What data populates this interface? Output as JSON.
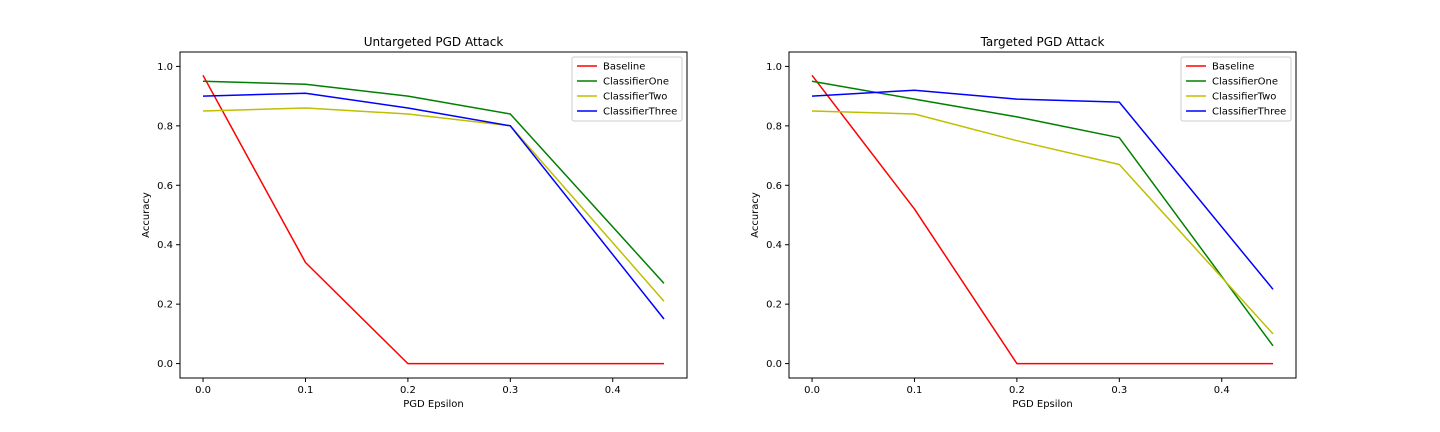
{
  "chart_data": [
    {
      "type": "line",
      "title": "Untargeted PGD Attack",
      "xlabel": "PGD Epsilon",
      "ylabel": "Accuracy",
      "x": [
        0.0,
        0.1,
        0.2,
        0.3,
        0.45
      ],
      "xticks": [
        "0.0",
        "0.1",
        "0.2",
        "0.3",
        "0.4"
      ],
      "xtick_values": [
        0.0,
        0.1,
        0.2,
        0.3,
        0.4
      ],
      "yticks": [
        "0.0",
        "0.2",
        "0.4",
        "0.6",
        "0.8",
        "1.0"
      ],
      "ytick_values": [
        0.0,
        0.2,
        0.4,
        0.6,
        0.8,
        1.0
      ],
      "xlim": [
        -0.0225,
        0.4725
      ],
      "ylim": [
        -0.0485,
        1.0485
      ],
      "legend": "top-right",
      "series": [
        {
          "name": "Baseline",
          "color": "#ff0000",
          "values": [
            0.97,
            0.34,
            0.0,
            0.0,
            0.0
          ]
        },
        {
          "name": "ClassifierOne",
          "color": "#008000",
          "values": [
            0.95,
            0.94,
            0.9,
            0.84,
            0.27
          ]
        },
        {
          "name": "ClassifierTwo",
          "color": "#bfbf00",
          "values": [
            0.85,
            0.86,
            0.84,
            0.8,
            0.21
          ]
        },
        {
          "name": "ClassifierThree",
          "color": "#0000ff",
          "values": [
            0.9,
            0.91,
            0.86,
            0.8,
            0.15
          ]
        }
      ]
    },
    {
      "type": "line",
      "title": "Targeted PGD Attack",
      "xlabel": "PGD Epsilon",
      "ylabel": "Accuracy",
      "x": [
        0.0,
        0.1,
        0.2,
        0.3,
        0.45
      ],
      "xticks": [
        "0.0",
        "0.1",
        "0.2",
        "0.3",
        "0.4"
      ],
      "xtick_values": [
        0.0,
        0.1,
        0.2,
        0.3,
        0.4
      ],
      "yticks": [
        "0.0",
        "0.2",
        "0.4",
        "0.6",
        "0.8",
        "1.0"
      ],
      "ytick_values": [
        0.0,
        0.2,
        0.4,
        0.6,
        0.8,
        1.0
      ],
      "xlim": [
        -0.0225,
        0.4725
      ],
      "ylim": [
        -0.0485,
        1.0485
      ],
      "legend": "top-right",
      "series": [
        {
          "name": "Baseline",
          "color": "#ff0000",
          "values": [
            0.97,
            0.52,
            0.0,
            0.0,
            0.0
          ]
        },
        {
          "name": "ClassifierOne",
          "color": "#008000",
          "values": [
            0.95,
            0.89,
            0.83,
            0.76,
            0.06
          ]
        },
        {
          "name": "ClassifierTwo",
          "color": "#bfbf00",
          "values": [
            0.85,
            0.84,
            0.75,
            0.67,
            0.1
          ]
        },
        {
          "name": "ClassifierThree",
          "color": "#0000ff",
          "values": [
            0.9,
            0.92,
            0.89,
            0.88,
            0.25
          ]
        }
      ]
    }
  ]
}
